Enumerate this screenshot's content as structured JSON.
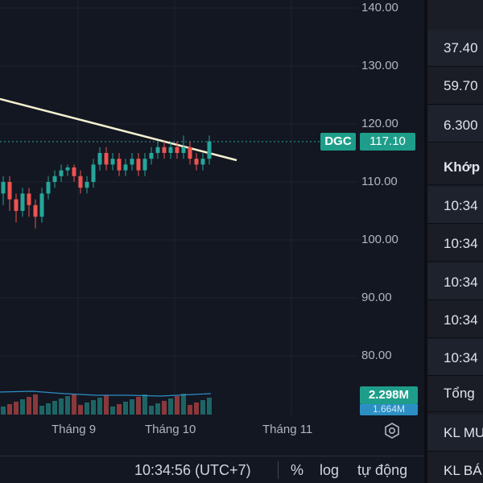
{
  "chart": {
    "symbol": "DGC",
    "last_price": "117.10",
    "price_axis": [
      "140.00",
      "130.00",
      "120.00",
      "110.00",
      "100.00",
      "90.00",
      "80.00"
    ],
    "time_axis": [
      "Tháng 9",
      "Tháng 10",
      "Tháng 11"
    ],
    "volume_last": "2.298M",
    "volume_avg": "1.664M",
    "colors": {
      "up": "#26a69a",
      "down": "#ef5350",
      "trendline": "#f5f0d0",
      "accent": "#1e9e8a"
    }
  },
  "bottom_bar": {
    "time": "10:34:56 (UTC+7)",
    "percent": "%",
    "log": "log",
    "auto": "tự động"
  },
  "right_panel": {
    "rows": [
      {
        "text": "",
        "style": "normal"
      },
      {
        "text": "37.40",
        "style": "normal"
      },
      {
        "text": "59.70",
        "style": "normal"
      },
      {
        "text": "6.300",
        "style": "normal"
      },
      {
        "text": "Khớp",
        "style": "bold"
      },
      {
        "text": "10:34",
        "style": "normal"
      },
      {
        "text": "10:34",
        "style": "normal"
      },
      {
        "text": "10:34",
        "style": "normal"
      },
      {
        "text": "10:34",
        "style": "normal"
      },
      {
        "text": "10:34",
        "style": "normal"
      },
      {
        "text": "Tổng",
        "style": "normal"
      },
      {
        "text": "KL MU",
        "style": "normal"
      },
      {
        "text": "KL BÁ",
        "style": "normal"
      }
    ]
  }
}
